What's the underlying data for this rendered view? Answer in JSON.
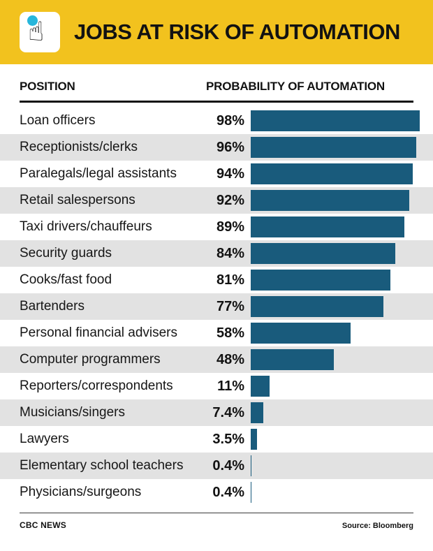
{
  "header": {
    "title": "JOBS AT RISK OF AUTOMATION",
    "icon": "hand-cursor-click-icon",
    "banner_color": "#F2C21E",
    "click_dot_color": "#27B6DB"
  },
  "columns": {
    "position": "POSITION",
    "probability": "PROBABILITY OF AUTOMATION"
  },
  "footer": {
    "brand": "CBC NEWS",
    "source": "Source: Bloomberg"
  },
  "chart_data": {
    "type": "bar",
    "orientation": "horizontal",
    "title": "JOBS AT RISK OF AUTOMATION",
    "xlabel": "PROBABILITY OF AUTOMATION",
    "ylabel": "POSITION",
    "xlim": [
      0,
      100
    ],
    "grid": false,
    "legend": false,
    "bar_color": "#195B7C",
    "row_alt_color": "#E2E2E2",
    "categories": [
      "Loan officers",
      "Receptionists/clerks",
      "Paralegals/legal assistants",
      "Retail salespersons",
      "Taxi drivers/chauffeurs",
      "Security guards",
      "Cooks/fast food",
      "Bartenders",
      "Personal financial advisers",
      "Computer programmers",
      "Reporters/correspondents",
      "Musicians/singers",
      "Lawyers",
      "Elementary school teachers",
      "Physicians/surgeons"
    ],
    "values": [
      98,
      96,
      94,
      92,
      89,
      84,
      81,
      77,
      58,
      48,
      11,
      7.4,
      3.5,
      0.4,
      0.4
    ],
    "value_labels": [
      "98%",
      "96%",
      "94%",
      "92%",
      "89%",
      "84%",
      "81%",
      "77%",
      "58%",
      "48%",
      "11%",
      "7.4%",
      "3.5%",
      "0.4%",
      "0.4%"
    ],
    "source": "Source: Bloomberg"
  }
}
